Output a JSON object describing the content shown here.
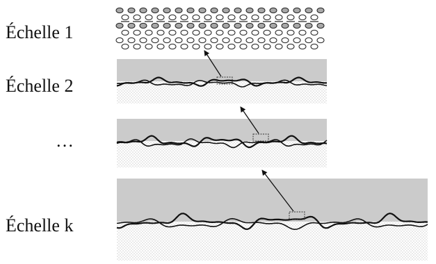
{
  "labels": {
    "scale_1": "Échelle 1",
    "scale_2": "Échelle 2",
    "scale_ellipsis": "…",
    "scale_k": "Échelle k"
  },
  "colors": {
    "gray_band": "#cbcbcb",
    "stipple": "#9a9a9a",
    "line": "#111111",
    "particle_fill": "#a0a0a0"
  }
}
